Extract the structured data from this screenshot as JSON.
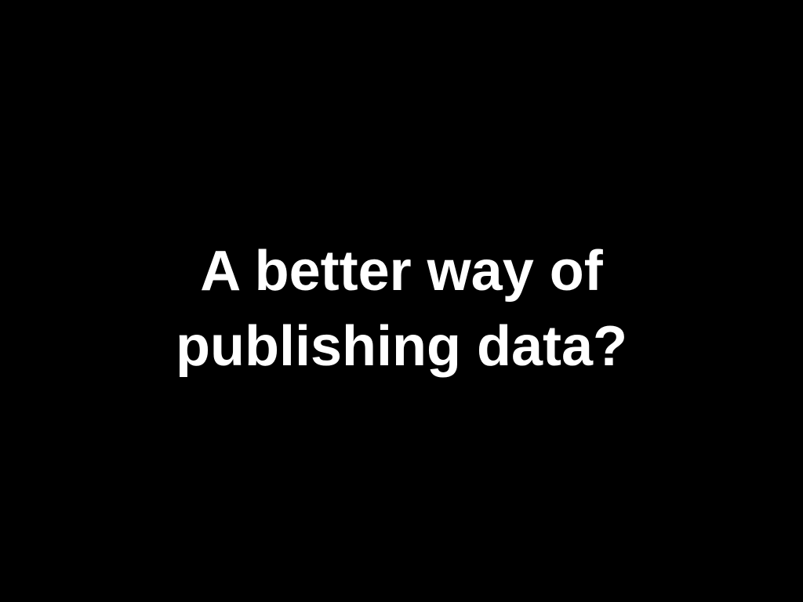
{
  "slide": {
    "background_color": "#000000",
    "text_color": "#ffffff",
    "title_lines": [
      "A better way of",
      "publishing data?"
    ]
  }
}
